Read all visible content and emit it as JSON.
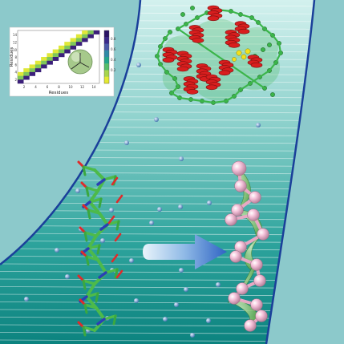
{
  "figure": {
    "description_domain": "scientific illustration",
    "colors": {
      "background_teal": "#8cc9cb",
      "band_light": "#c9ece9",
      "band_dark": "#0f8a85",
      "band_border": "#1a3f9a",
      "protein_red": "#d81e1e",
      "protein_green": "#3bb54a",
      "helix_pink": "#f3b8d3",
      "helix_green": "#5cb84e",
      "arrow_blue": "#3b74c8"
    },
    "icons": [
      "protein-cartoon-icon",
      "peptide-sticks-icon",
      "coarse-grained-helix-icon",
      "transform-arrow-icon",
      "sphere-icon"
    ]
  },
  "inset_chart": {
    "xlabel": "Residues",
    "ylabel": "Residues",
    "x_ticks": [
      "2",
      "4",
      "6",
      "8",
      "10",
      "12",
      "14"
    ],
    "y_ticks": [
      "2",
      "4",
      "6",
      "8",
      "10",
      "12",
      "14"
    ],
    "colorbar_ticks": [
      "0.8",
      "0.6",
      "0.4",
      "0.2"
    ],
    "colorbar_colors": [
      "#3b1f7a",
      "#3a5fa0",
      "#2aa08a",
      "#7fc75a",
      "#e0e838"
    ]
  }
}
